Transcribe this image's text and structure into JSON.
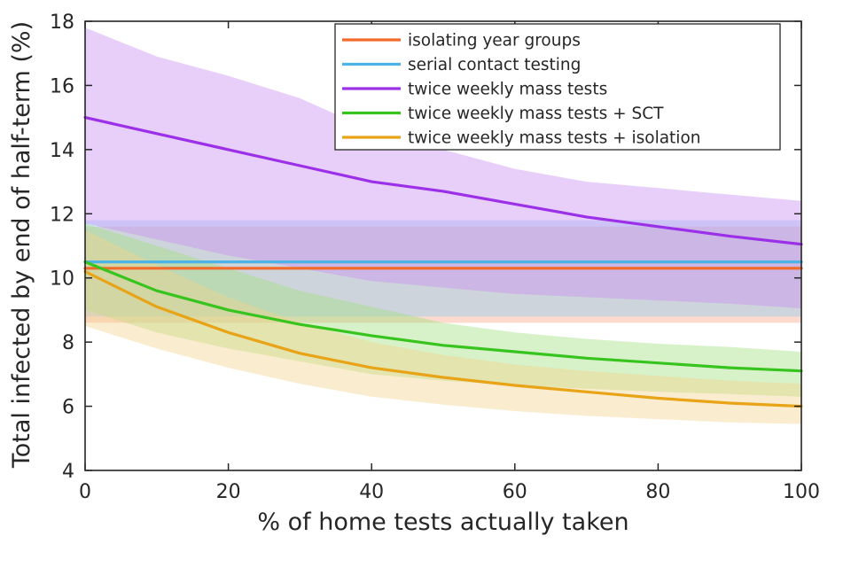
{
  "chart_data": {
    "type": "line",
    "title": "",
    "xlabel": "% of home tests actually taken",
    "ylabel": "Total infected by end of half-term (%)",
    "xlim": [
      0,
      100
    ],
    "ylim": [
      4,
      18
    ],
    "xticks": [
      0,
      20,
      40,
      60,
      80,
      100
    ],
    "yticks": [
      4,
      6,
      8,
      10,
      12,
      14,
      16,
      18
    ],
    "grid": false,
    "legend_position": "top-right",
    "x": [
      0,
      10,
      20,
      30,
      40,
      50,
      60,
      70,
      80,
      90,
      100
    ],
    "series": [
      {
        "name": "isolating year groups",
        "color": "#f26b2a",
        "band_color": "#f7a78a",
        "values": [
          10.3,
          10.3,
          10.3,
          10.3,
          10.3,
          10.3,
          10.3,
          10.3,
          10.3,
          10.3,
          10.3
        ],
        "lower": [
          8.6,
          8.6,
          8.6,
          8.6,
          8.6,
          8.6,
          8.6,
          8.6,
          8.6,
          8.6,
          8.6
        ],
        "upper": [
          11.6,
          11.6,
          11.6,
          11.6,
          11.6,
          11.6,
          11.6,
          11.6,
          11.6,
          11.6,
          11.6
        ]
      },
      {
        "name": "serial contact testing",
        "color": "#4db3e6",
        "band_color": "#8fcdee",
        "values": [
          10.5,
          10.5,
          10.5,
          10.5,
          10.5,
          10.5,
          10.5,
          10.5,
          10.5,
          10.5,
          10.5
        ],
        "lower": [
          8.8,
          8.8,
          8.8,
          8.8,
          8.8,
          8.8,
          8.8,
          8.8,
          8.8,
          8.8,
          8.8
        ],
        "upper": [
          11.8,
          11.8,
          11.8,
          11.8,
          11.8,
          11.8,
          11.8,
          11.8,
          11.8,
          11.8,
          11.8
        ]
      },
      {
        "name": "twice weekly mass tests",
        "color": "#9b30e8",
        "band_color": "#c78cf2",
        "values": [
          15.0,
          14.5,
          14.0,
          13.5,
          13.0,
          12.7,
          12.3,
          11.9,
          11.6,
          11.3,
          11.05
        ],
        "lower": [
          11.7,
          11.2,
          10.7,
          10.3,
          9.9,
          9.7,
          9.5,
          9.4,
          9.3,
          9.2,
          9.05
        ],
        "upper": [
          17.8,
          16.9,
          16.3,
          15.6,
          14.6,
          14.0,
          13.4,
          13.0,
          12.8,
          12.6,
          12.4
        ]
      },
      {
        "name": "twice weekly mass tests + SCT",
        "color": "#38c41e",
        "band_color": "#9fe07e",
        "values": [
          10.5,
          9.6,
          9.0,
          8.55,
          8.2,
          7.9,
          7.7,
          7.5,
          7.35,
          7.2,
          7.1
        ],
        "lower": [
          9.0,
          8.3,
          7.8,
          7.4,
          7.0,
          6.8,
          6.65,
          6.55,
          6.45,
          6.38,
          6.3
        ],
        "upper": [
          11.7,
          11.0,
          10.3,
          9.6,
          9.1,
          8.6,
          8.3,
          8.1,
          7.95,
          7.85,
          7.7
        ]
      },
      {
        "name": "twice weekly mass tests + isolation",
        "color": "#e8a317",
        "band_color": "#f2d18a",
        "values": [
          10.2,
          9.1,
          8.3,
          7.65,
          7.2,
          6.9,
          6.65,
          6.45,
          6.25,
          6.1,
          6.0
        ],
        "lower": [
          8.5,
          7.8,
          7.2,
          6.7,
          6.3,
          6.05,
          5.85,
          5.7,
          5.6,
          5.5,
          5.45
        ],
        "upper": [
          11.5,
          10.4,
          9.4,
          8.6,
          8.0,
          7.6,
          7.3,
          7.1,
          6.95,
          6.8,
          6.7
        ]
      }
    ]
  }
}
